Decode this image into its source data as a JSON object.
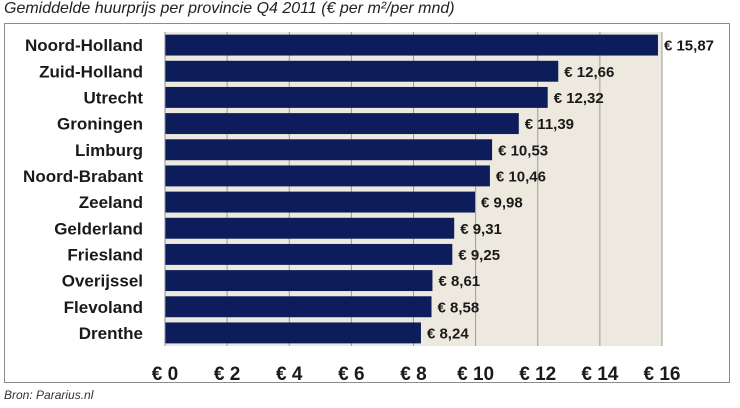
{
  "title": "Gemiddelde huurprijs per provincie Q4 2011 (€ per m²/per mnd)",
  "source": "Bron: Pararius.nl",
  "colors": {
    "bar": "#0d1d5c",
    "plot_background": "#ede9df",
    "gridline": "#9a9a9a"
  },
  "chart_data": {
    "type": "bar",
    "orientation": "horizontal",
    "categories": [
      "Noord-Holland",
      "Zuid-Holland",
      "Utrecht",
      "Groningen",
      "Limburg",
      "Noord-Brabant",
      "Zeeland",
      "Gelderland",
      "Friesland",
      "Overijssel",
      "Flevoland",
      "Drenthe"
    ],
    "values": [
      15.87,
      12.66,
      12.32,
      11.39,
      10.53,
      10.46,
      9.98,
      9.31,
      9.25,
      8.61,
      8.58,
      8.24
    ],
    "value_labels": [
      "€ 15,87",
      "€ 12,66",
      "€ 12,32",
      "€ 11,39",
      "€ 10,53",
      "€ 10,46",
      "€ 9,98",
      "€ 9,31",
      "€ 9,25",
      "€ 8,61",
      "€ 8,58",
      "€ 8,24"
    ],
    "xlim": [
      0,
      16
    ],
    "xticks": [
      0,
      2,
      4,
      6,
      8,
      10,
      12,
      14,
      16
    ],
    "xtick_labels": [
      "€ 0",
      "€ 2",
      "€ 4",
      "€ 6",
      "€ 8",
      "€ 10",
      "€ 12",
      "€ 14",
      "€ 16"
    ],
    "grid": "vertical",
    "legend": "none"
  }
}
